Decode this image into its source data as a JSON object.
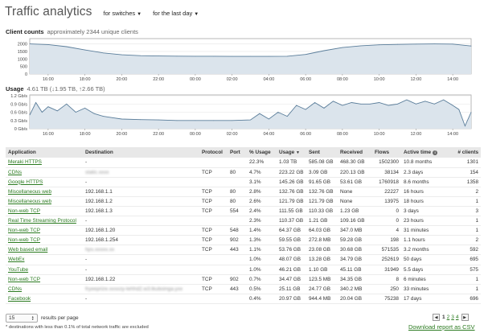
{
  "header": {
    "title": "Traffic analytics",
    "filter_switches": "for switches",
    "filter_time": "for the last day"
  },
  "client_counts": {
    "label": "Client counts",
    "sublabel": "approximately 2344 unique clients"
  },
  "usage": {
    "label": "Usage",
    "sublabel": "4.61 TB (↓1.95 TB, ↑2.66 TB)"
  },
  "chart_data": [
    {
      "type": "area",
      "y_ticks": [
        "0",
        "500",
        "1000",
        "1500",
        "2000"
      ],
      "ylim": [
        0,
        2300
      ],
      "x_ticks": [
        "16:00",
        "18:00",
        "20:00",
        "22:00",
        "00:00",
        "02:00",
        "04:00",
        "06:00",
        "08:00",
        "10:00",
        "12:00",
        "14:00"
      ],
      "x": [
        "15:00",
        "16:00",
        "17:00",
        "18:00",
        "19:00",
        "20:00",
        "21:00",
        "22:00",
        "23:00",
        "00:00",
        "01:00",
        "02:00",
        "03:00",
        "04:00",
        "05:00",
        "06:00",
        "07:00",
        "08:00",
        "09:00",
        "10:00",
        "11:00",
        "12:00",
        "13:00",
        "14:00",
        "15:00"
      ],
      "values": [
        2000,
        1960,
        1820,
        1600,
        1400,
        1280,
        1220,
        1200,
        1190,
        1180,
        1180,
        1170,
        1170,
        1170,
        1180,
        1300,
        1550,
        1760,
        1880,
        1940,
        1970,
        1990,
        2000,
        1990,
        1860
      ],
      "grid": true,
      "colors": {
        "fill": "#dbe4ec",
        "line": "#5a7d9a"
      }
    },
    {
      "type": "area",
      "y_ticks": [
        "0 Gb/s",
        "0.3 Gb/s",
        "0.6 Gb/s",
        "0.9 Gb/s",
        "1.2 Gb/s"
      ],
      "ylim": [
        0,
        1.2
      ],
      "x_ticks": [
        "16:00",
        "18:00",
        "20:00",
        "22:00",
        "00:00",
        "02:00",
        "04:00",
        "06:00",
        "08:00",
        "10:00",
        "12:00",
        "14:00"
      ],
      "x": [
        "15:00",
        "15:20",
        "15:40",
        "16:00",
        "16:30",
        "17:00",
        "17:30",
        "18:00",
        "18:30",
        "19:00",
        "19:30",
        "20:00",
        "21:00",
        "22:00",
        "23:00",
        "00:00",
        "01:00",
        "02:00",
        "03:00",
        "03:30",
        "04:00",
        "04:30",
        "05:00",
        "05:30",
        "06:00",
        "06:30",
        "07:00",
        "07:30",
        "08:00",
        "08:30",
        "09:00",
        "09:30",
        "10:00",
        "10:30",
        "11:00",
        "11:30",
        "12:00",
        "12:30",
        "13:00",
        "13:30",
        "14:00",
        "14:20",
        "14:40",
        "15:00"
      ],
      "values": [
        0.5,
        0.95,
        0.6,
        0.8,
        0.65,
        0.9,
        0.6,
        0.75,
        0.55,
        0.45,
        0.4,
        0.35,
        0.33,
        0.32,
        0.3,
        0.3,
        0.3,
        0.3,
        0.32,
        0.55,
        0.35,
        0.6,
        0.45,
        0.85,
        0.7,
        0.95,
        0.75,
        1.0,
        0.85,
        0.95,
        0.9,
        0.9,
        0.95,
        0.85,
        0.9,
        1.05,
        0.9,
        1.0,
        0.9,
        1.05,
        0.85,
        0.7,
        0.1,
        0.6
      ],
      "grid": true,
      "colors": {
        "fill": "#dbe4ec",
        "line": "#5a7d9a"
      }
    }
  ],
  "table": {
    "columns": [
      "Application",
      "Destination",
      "Protocol",
      "Port",
      "% Usage",
      "Usage",
      "Sent",
      "Received",
      "Flows",
      "Active time",
      "# clients"
    ],
    "usage_sort_glyph": "▼",
    "active_time_info_glyph": "i",
    "rows": [
      [
        "Meraki HTTPS",
        "-",
        "",
        "",
        "22.3%",
        "1.03 TB",
        "585.08 GB",
        "468.30 GB",
        "1502300",
        "10.8 months",
        "1301"
      ],
      [
        "CDNs",
        "static.xxxx",
        "TCP",
        "80",
        "4.7%",
        "223.22 GB",
        "3.09 GB",
        "220.13 GB",
        "38134",
        "2.3 days",
        "154"
      ],
      [
        "Google HTTPS",
        "-",
        "",
        "",
        "3.1%",
        "145.26 GB",
        "91.65 GB",
        "53.61 GB",
        "1760918",
        "8.6 months",
        "1358"
      ],
      [
        "Miscellaneous web",
        "192.168.1.1",
        "TCP",
        "80",
        "2.8%",
        "132.76 GB",
        "132.76 GB",
        "None",
        "22227",
        "16 hours",
        "2"
      ],
      [
        "Miscellaneous web",
        "192.168.1.2",
        "TCP",
        "80",
        "2.6%",
        "121.79 GB",
        "121.79 GB",
        "None",
        "13975",
        "18 hours",
        "1"
      ],
      [
        "Non-web TCP",
        "192.168.1.3",
        "TCP",
        "554",
        "2.4%",
        "111.55 GB",
        "110.33 GB",
        "1.23 GB",
        "0",
        "3 days",
        "3"
      ],
      [
        "Real Time Streaming Protocol",
        "-",
        "",
        "",
        "2.3%",
        "110.37 GB",
        "1.21 GB",
        "109.16 GB",
        "0",
        "23 hours",
        "1"
      ],
      [
        "Non-web TCP",
        "192.168.1.20",
        "TCP",
        "548",
        "1.4%",
        "64.37 GB",
        "64.03 GB",
        "347.0 MB",
        "4",
        "31 minutes",
        "1"
      ],
      [
        "Non-web TCP",
        "192.168.1.254",
        "TCP",
        "902",
        "1.3%",
        "59.55 GB",
        "272.8 MB",
        "59.28 GB",
        "198",
        "1.1 hours",
        "2"
      ],
      [
        "Web based email",
        "hps.xxxxx.xx",
        "TCP",
        "443",
        "1.1%",
        "53.76 GB",
        "23.08 GB",
        "30.68 GB",
        "571535",
        "3.2 months",
        "592"
      ],
      [
        "WebEx",
        "-",
        "",
        "",
        "1.0%",
        "48.07 GB",
        "13.28 GB",
        "34.79 GB",
        "252619",
        "50 days",
        "695"
      ],
      [
        "YouTube",
        "-",
        "",
        "",
        "1.0%",
        "46.21 GB",
        "1.10 GB",
        "45.11 GB",
        "31949",
        "5.5 days",
        "575"
      ],
      [
        "Non-web TCP",
        "192.168.1.22",
        "TCP",
        "902",
        "0.7%",
        "34.47 GB",
        "123.5 MB",
        "34.35 GB",
        "8",
        "6 minutes",
        "1"
      ],
      [
        "CDNs",
        "fryeeprize.xxxxzy-tehhd2.w3.lkuboinga.yxx",
        "TCP",
        "443",
        "0.5%",
        "25.11 GB",
        "24.77 GB",
        "340.2 MB",
        "250",
        "33 minutes",
        "1"
      ],
      [
        "Facebook",
        "-",
        "",
        "",
        "0.4%",
        "20.97 GB",
        "944.4 MB",
        "20.04 GB",
        "75238",
        "17 days",
        "696"
      ]
    ],
    "blurred_destinations": [
      1,
      9,
      13
    ]
  },
  "footer": {
    "per_page_value": "15",
    "per_page_caret": "▲▼",
    "per_page_label": "results per page",
    "note": "* destinations with less than 0.1% of total network traffic are excluded",
    "pages": [
      "1",
      "2",
      "3",
      "4"
    ],
    "current_page": "1",
    "prev_glyph": "◀",
    "next_glyph": "▶",
    "csv_link": "Download report as CSV"
  }
}
